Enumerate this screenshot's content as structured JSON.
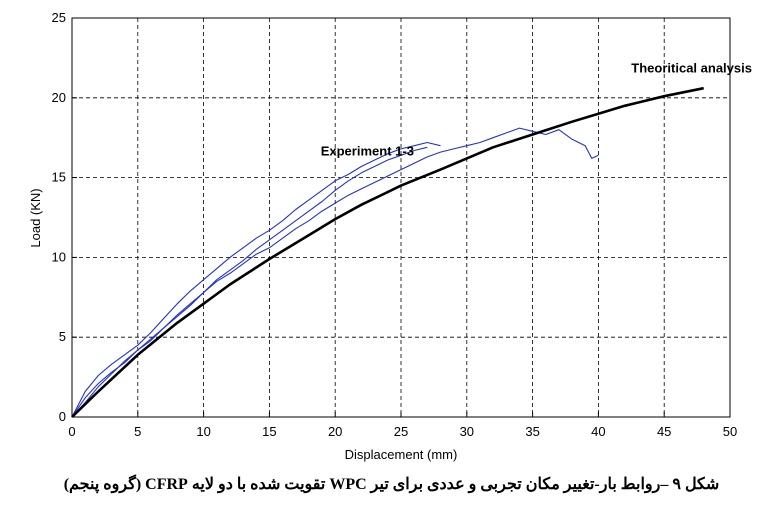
{
  "chart_data": {
    "type": "line",
    "xlabel": "Displacement (mm)",
    "ylabel": "Load (KN)",
    "xlim": [
      0,
      50
    ],
    "ylim": [
      0,
      25
    ],
    "xticks": [
      0,
      5,
      10,
      15,
      20,
      25,
      30,
      35,
      40,
      45,
      50
    ],
    "yticks": [
      0,
      5,
      10,
      15,
      20,
      25
    ],
    "grid": "dashed",
    "annotations": [
      {
        "text": "Theoritical analysis",
        "x": 42.5,
        "y": 21.6
      },
      {
        "text": "Experiment 1-3",
        "x": 18.9,
        "y": 16.4
      }
    ],
    "series": [
      {
        "name": "Theoritical analysis",
        "color": "#000000",
        "x": [
          0,
          2,
          5,
          8,
          10,
          12,
          15,
          18,
          20,
          22,
          25,
          28,
          30,
          32,
          35,
          38,
          40,
          42,
          45,
          48
        ],
        "y": [
          0,
          1.6,
          3.9,
          5.9,
          7.1,
          8.3,
          9.9,
          11.4,
          12.4,
          13.3,
          14.5,
          15.5,
          16.2,
          16.9,
          17.7,
          18.5,
          19.0,
          19.5,
          20.1,
          20.6
        ]
      },
      {
        "name": "Experiment 1",
        "color": "#2233cc",
        "x": [
          0,
          1,
          2,
          3,
          4,
          5,
          6,
          7,
          8,
          9,
          10,
          11,
          12,
          13,
          14,
          15,
          16,
          17,
          18,
          19,
          20,
          21,
          22,
          23,
          24,
          25,
          26,
          27,
          28,
          29,
          30,
          31,
          32,
          33,
          34,
          35,
          36,
          37,
          38,
          39,
          39.5,
          40
        ],
        "y": [
          0,
          1.2,
          2.1,
          2.8,
          3.4,
          4.2,
          4.8,
          5.6,
          6.4,
          7.1,
          7.8,
          8.5,
          9.0,
          9.6,
          10.2,
          10.6,
          11.2,
          11.8,
          12.3,
          12.9,
          13.4,
          13.9,
          14.3,
          14.7,
          15.1,
          15.5,
          15.9,
          16.3,
          16.6,
          16.8,
          17.0,
          17.2,
          17.5,
          17.8,
          18.1,
          17.9,
          17.7,
          18.0,
          17.4,
          17.0,
          16.2,
          16.4
        ]
      },
      {
        "name": "Experiment 2",
        "color": "#2233cc",
        "x": [
          0,
          1,
          2,
          3,
          4,
          5,
          6,
          7,
          8,
          9,
          10,
          11,
          12,
          13,
          14,
          15,
          16,
          17,
          18,
          19,
          20,
          21,
          22,
          23,
          24,
          25,
          26,
          27,
          28
        ],
        "y": [
          0,
          1.6,
          2.6,
          3.3,
          3.9,
          4.5,
          5.3,
          6.2,
          7.1,
          7.9,
          8.6,
          9.3,
          10.0,
          10.6,
          11.2,
          11.7,
          12.3,
          13.0,
          13.6,
          14.2,
          14.8,
          15.2,
          15.7,
          16.1,
          16.5,
          16.8,
          17.0,
          17.2,
          17.0
        ]
      },
      {
        "name": "Experiment 3",
        "color": "#2233cc",
        "x": [
          0,
          1,
          2,
          3,
          4,
          5,
          6,
          7,
          8,
          9,
          10,
          11,
          12,
          13,
          14,
          15,
          16,
          17,
          18,
          19,
          20,
          21,
          22,
          23,
          24,
          25,
          26,
          27
        ],
        "y": [
          0,
          0.9,
          1.9,
          2.7,
          3.5,
          4.2,
          4.9,
          5.6,
          6.3,
          7.0,
          7.8,
          8.6,
          9.2,
          9.8,
          10.5,
          11.1,
          11.7,
          12.3,
          12.9,
          13.5,
          14.2,
          14.8,
          15.3,
          15.7,
          16.1,
          16.4,
          16.7,
          16.9
        ]
      }
    ]
  },
  "caption": "شکل ۹ –روابط بار-تغییر مکان تجربی و عددی برای تیر WPC تقویت شده با دو لایه CFRP (گروه پنجم)"
}
